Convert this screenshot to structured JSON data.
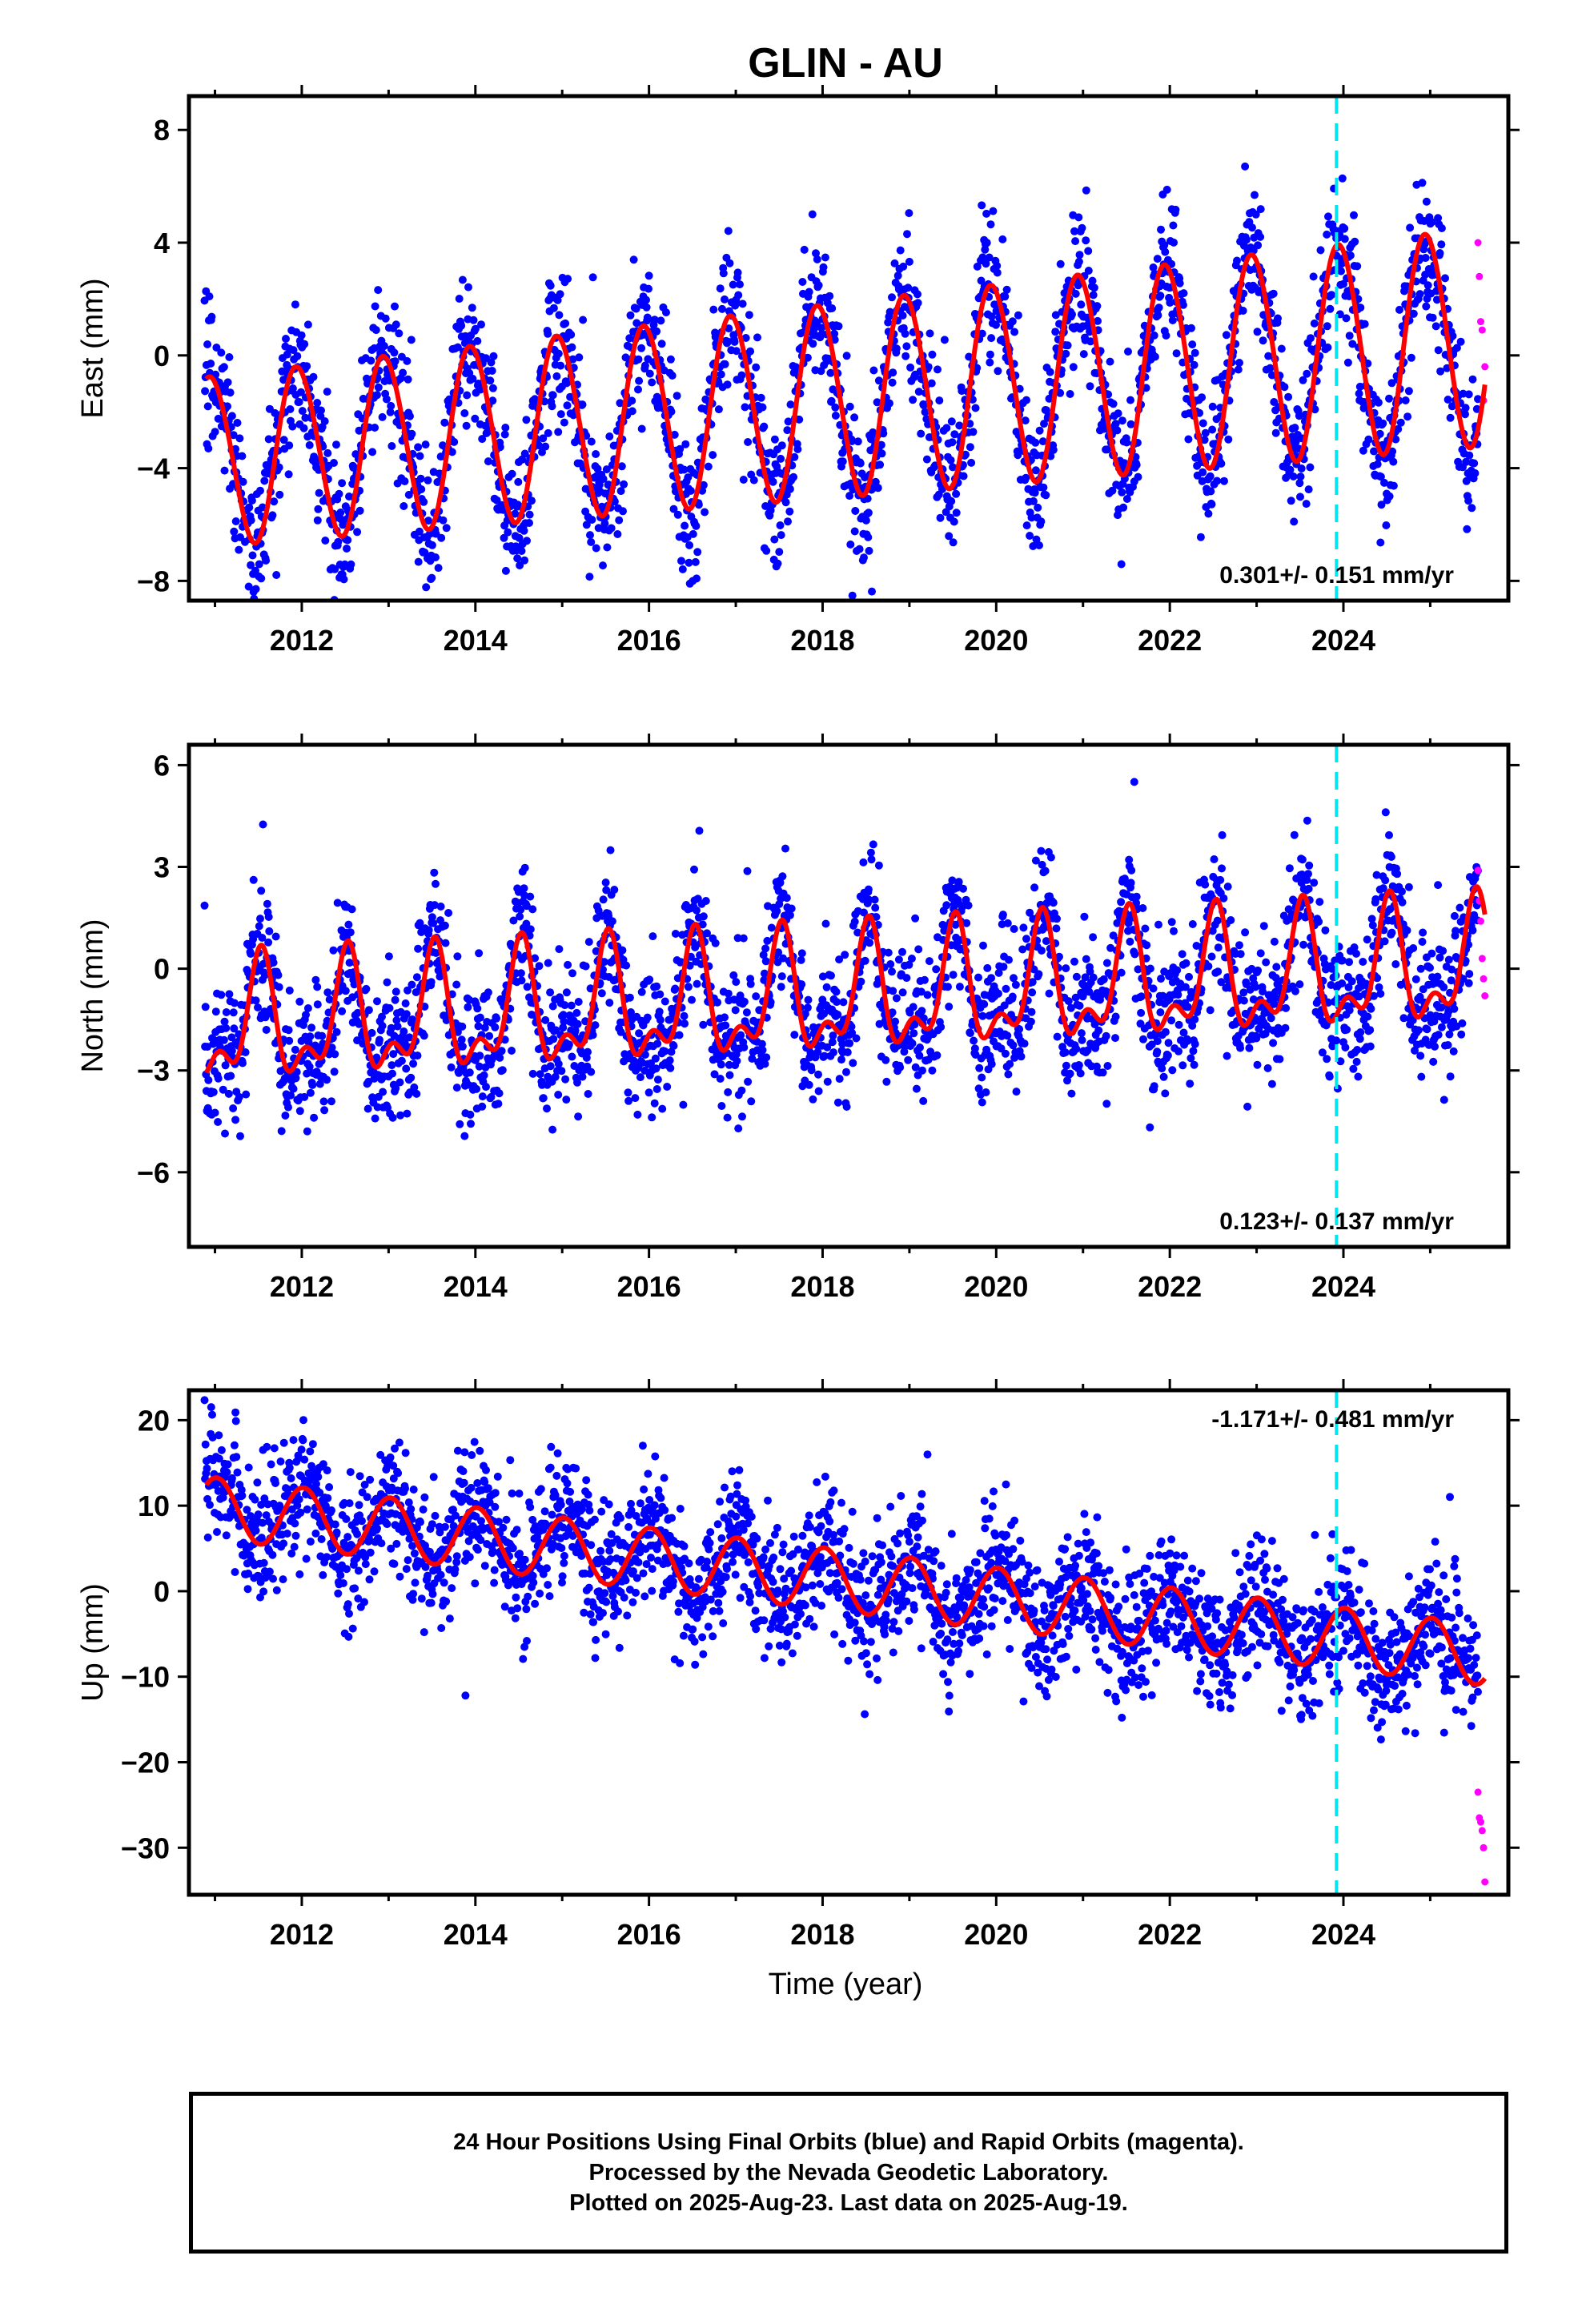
{
  "title": "GLIN - AU",
  "colors": {
    "final": "#0000ff",
    "rapid": "#ff00ff",
    "model": "#ff0000",
    "break": "#00e5ee",
    "axis": "#000000"
  },
  "xlabel": "Time (year)",
  "footer": {
    "line1": "24 Hour Positions Using Final Orbits (blue) and Rapid Orbits (magenta).",
    "line2": "Processed by the Nevada Geodetic Laboratory.",
    "line3": "Plotted on 2025-Aug-23. Last data on 2025-Aug-19."
  },
  "chart_data": [
    {
      "type": "scatter",
      "ylabel": "East (mm)",
      "xlim": [
        2010.7,
        2025.9
      ],
      "ylim": [
        -8.7,
        9.2
      ],
      "xticks": [
        2012,
        2014,
        2016,
        2018,
        2020,
        2022,
        2024
      ],
      "xtick_labels": [
        "2012",
        "2014",
        "2016",
        "2018",
        "2020",
        "2022",
        "2024"
      ],
      "yticks": [
        -8,
        -4,
        0,
        4,
        8
      ],
      "ytick_labels": [
        "−8",
        "−4",
        "0",
        "4",
        "8"
      ],
      "rate_text": "0.301+/- 0.151 mm/yr",
      "rate_pos": "bottom-right",
      "break_x": 2023.92,
      "data_start": 2010.88,
      "final_end": 2025.55,
      "last_data": 2025.63,
      "model": {
        "offset": -1.6,
        "trend": 0.301,
        "ref_year": 2018.0,
        "annual_amp": 3.0,
        "annual_amp_growth": 0.06,
        "annual_phase": 0.95,
        "semi_amp": 0.15,
        "semi_phase": 0.3
      },
      "scatter_sd": 1.25,
      "rapid_values": [
        4.0,
        2.8,
        1.2,
        0.9,
        -1.6,
        -0.4
      ]
    },
    {
      "type": "scatter",
      "ylabel": "North (mm)",
      "xlim": [
        2010.7,
        2025.9
      ],
      "ylim": [
        -8.2,
        6.6
      ],
      "xticks": [
        2012,
        2014,
        2016,
        2018,
        2020,
        2022,
        2024
      ],
      "xtick_labels": [
        "2012",
        "2014",
        "2016",
        "2018",
        "2020",
        "2022",
        "2024"
      ],
      "yticks": [
        -6,
        -3,
        0,
        3,
        6
      ],
      "ytick_labels": [
        "−6",
        "−3",
        "0",
        "3",
        "6"
      ],
      "rate_text": "0.123+/- 0.137 mm/yr",
      "rate_pos": "bottom-right",
      "break_x": 2023.92,
      "data_start": 2010.88,
      "final_end": 2025.55,
      "last_data": 2025.63,
      "model": {
        "offset": -0.9,
        "trend": 0.123,
        "ref_year": 2018.0,
        "annual_amp": 1.55,
        "annual_amp_growth": 0.0,
        "annual_phase": 0.52,
        "semi_amp": 0.85,
        "semi_phase": 0.04
      },
      "scatter_sd": 1.05,
      "rapid_values": [
        2.9,
        2.0,
        1.4,
        0.3,
        -0.3,
        -0.8
      ]
    },
    {
      "type": "scatter",
      "ylabel": "Up (mm)",
      "xlim": [
        2010.7,
        2025.9
      ],
      "ylim": [
        -35.5,
        23.5
      ],
      "xticks": [
        2012,
        2014,
        2016,
        2018,
        2020,
        2022,
        2024
      ],
      "xtick_labels": [
        "2012",
        "2014",
        "2016",
        "2018",
        "2020",
        "2022",
        "2024"
      ],
      "yticks": [
        -30,
        -20,
        -10,
        0,
        10,
        20
      ],
      "ytick_labels": [
        "−30",
        "−20",
        "−10",
        "0",
        "10",
        "20"
      ],
      "rate_text": "-1.171+/- 0.481 mm/yr",
      "rate_pos": "top-right",
      "break_x": 2023.92,
      "data_start": 2010.88,
      "final_end": 2025.55,
      "last_data": 2025.63,
      "model": {
        "offset": 1.5,
        "trend": -1.171,
        "ref_year": 2018.0,
        "annual_amp": 3.6,
        "annual_amp_growth": 0.0,
        "annual_phase": 0.02,
        "semi_amp": 0.0,
        "semi_phase": 0.0
      },
      "scatter_sd": 3.8,
      "rapid_values": [
        -23.5,
        -26.5,
        -27.0,
        -28.0,
        -30.0,
        -34.0
      ]
    }
  ]
}
